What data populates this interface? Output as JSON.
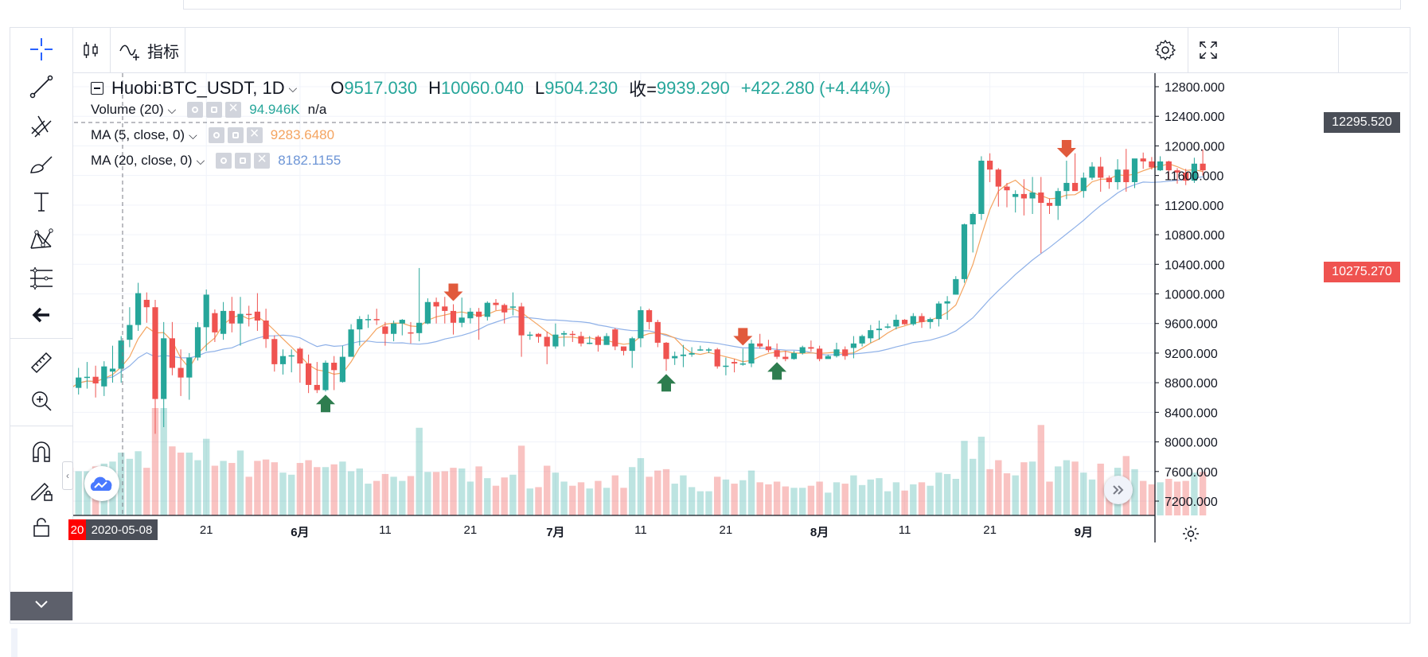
{
  "top_toolbar": {
    "indicators_label": "指标"
  },
  "legend": {
    "symbol": "Huobi:BTC_USDT, 1D",
    "open_key": "O",
    "open": "9517.030",
    "high_key": "H",
    "high": "10060.040",
    "low_key": "L",
    "low": "9504.230",
    "close_key": "收=",
    "close": "9939.290",
    "change": "+422.280 (+4.44%)",
    "volume_label": "Volume (20)",
    "volume_value": "94.946K",
    "volume_extra": "n/a",
    "ma5_label": "MA (5, close, 0)",
    "ma5_value": "9283.6480",
    "ma20_label": "MA (20, close, 0)",
    "ma20_value": "8182.1155"
  },
  "price_labels": {
    "crosshair_price": "12295.520",
    "last_price": "10275.270"
  },
  "date_labels": {
    "cursor_date": "2020-05-08",
    "cursor_prefix": "20"
  },
  "colors": {
    "up": "#26a69a",
    "down": "#ef5350",
    "ma5": "#f4a460",
    "ma20": "#8fb1e8",
    "buy_arrow": "#2e7d4f",
    "sell_arrow": "#e15a3c",
    "crosshair_label": "#4a4e57",
    "last_price_label": "#ef5350"
  },
  "icons": [
    "crosshair-icon",
    "trend-line-icon",
    "pitchfork-icon",
    "brush-icon",
    "text-icon",
    "pattern-icon",
    "fib-icon",
    "back-arrow-icon",
    "ruler-icon",
    "zoom-in-icon",
    "magnet-icon",
    "lock-draw-icon",
    "lock-icon",
    "candles-icon",
    "indicator-icon",
    "settings-icon",
    "fullscreen-icon",
    "logo-icon",
    "scroll-right-icon",
    "gear-icon"
  ],
  "chart_data": {
    "type": "candlestick",
    "y_axis": {
      "ticks": [
        "12800.000",
        "12400.000",
        "12000.000",
        "11600.000",
        "11200.000",
        "10800.000",
        "10400.000",
        "10000.000",
        "9600.000",
        "9200.000",
        "8800.000",
        "8400.000",
        "8000.000",
        "7600.000",
        "7200.000"
      ],
      "range": [
        7000,
        13000
      ]
    },
    "x_axis": {
      "ticks": [
        {
          "label": "21",
          "bold": false,
          "index": 16
        },
        {
          "label": "6月",
          "bold": true,
          "index": 27
        },
        {
          "label": "11",
          "bold": false,
          "index": 37
        },
        {
          "label": "21",
          "bold": false,
          "index": 47
        },
        {
          "label": "7月",
          "bold": true,
          "index": 57
        },
        {
          "label": "11",
          "bold": false,
          "index": 67
        },
        {
          "label": "21",
          "bold": false,
          "index": 77
        },
        {
          "label": "8月",
          "bold": true,
          "index": 88
        },
        {
          "label": "11",
          "bold": false,
          "index": 98
        },
        {
          "label": "21",
          "bold": false,
          "index": 108
        },
        {
          "label": "9月",
          "bold": true,
          "index": 119
        }
      ]
    },
    "candles": [
      [
        8990,
        8720,
        9070,
        8660
      ],
      [
        8730,
        8870,
        9000,
        8640
      ],
      [
        8870,
        8880,
        9080,
        8720
      ],
      [
        8880,
        8790,
        9030,
        8600
      ],
      [
        8750,
        9020,
        9090,
        8620
      ],
      [
        8950,
        8990,
        9300,
        8800
      ],
      [
        8990,
        9370,
        9430,
        8800
      ],
      [
        9380,
        9580,
        9820,
        9280
      ],
      [
        9580,
        10010,
        10150,
        9500
      ],
      [
        9920,
        9820,
        10020,
        9610
      ],
      [
        9820,
        8580,
        9920,
        8110
      ],
      [
        8580,
        9400,
        9620,
        8200
      ],
      [
        9400,
        9000,
        9620,
        8900
      ],
      [
        9000,
        8870,
        9250,
        8620
      ],
      [
        8870,
        9140,
        9200,
        8570
      ],
      [
        9140,
        9550,
        9620,
        9100
      ],
      [
        9550,
        9990,
        10060,
        9230
      ],
      [
        9740,
        9480,
        9790,
        9350
      ],
      [
        9460,
        9770,
        9890,
        9380
      ],
      [
        9770,
        9600,
        9960,
        9480
      ],
      [
        9600,
        9730,
        9960,
        9300
      ],
      [
        9730,
        9720,
        9840,
        9560
      ],
      [
        9760,
        9640,
        10010,
        9500
      ],
      [
        9640,
        9390,
        9800,
        9270
      ],
      [
        9390,
        9050,
        9440,
        8950
      ],
      [
        9050,
        9160,
        9250,
        8910
      ],
      [
        9160,
        9170,
        9250,
        8940
      ],
      [
        9260,
        9060,
        9280,
        8800
      ],
      [
        9060,
        8770,
        9180,
        8660
      ],
      [
        8770,
        8700,
        9080,
        8660
      ],
      [
        8700,
        9070,
        9100,
        8680
      ],
      [
        9070,
        8970,
        9160,
        8700
      ],
      [
        8810,
        9150,
        9300,
        8800
      ],
      [
        9150,
        9520,
        9590,
        9230
      ],
      [
        9520,
        9660,
        9700,
        9300
      ],
      [
        9660,
        9660,
        9720,
        9540
      ],
      [
        9660,
        9650,
        9800,
        9580
      ],
      [
        9560,
        9460,
        9620,
        9300
      ],
      [
        9460,
        9600,
        9640,
        9360
      ],
      [
        9600,
        9650,
        9660,
        9440
      ],
      [
        9480,
        9470,
        9620,
        9330
      ],
      [
        9470,
        9610,
        10350,
        9360
      ],
      [
        9600,
        9890,
        9940,
        9590
      ],
      [
        9890,
        9830,
        9950,
        9600
      ],
      [
        9830,
        9770,
        9960,
        9600
      ],
      [
        9770,
        9610,
        9860,
        9450
      ],
      [
        9610,
        9680,
        9950,
        9550
      ],
      [
        9670,
        9760,
        9810,
        9600
      ],
      [
        9760,
        9690,
        9810,
        9380
      ],
      [
        9690,
        9880,
        9900,
        9640
      ],
      [
        9880,
        9850,
        9930,
        9780
      ],
      [
        9850,
        9750,
        9870,
        9600
      ],
      [
        9820,
        9830,
        10020,
        9710
      ],
      [
        9830,
        9440,
        9880,
        9150
      ],
      [
        9440,
        9450,
        9490,
        9380
      ],
      [
        9460,
        9420,
        9470,
        9340
      ],
      [
        9420,
        9290,
        9490,
        9050
      ],
      [
        9290,
        9450,
        9600,
        9260
      ],
      [
        9450,
        9470,
        9500,
        9290
      ],
      [
        9460,
        9450,
        9500,
        9350
      ],
      [
        9430,
        9330,
        9490,
        9290
      ],
      [
        9330,
        9340,
        9430,
        9320
      ],
      [
        9420,
        9310,
        9440,
        9220
      ],
      [
        9310,
        9430,
        9470,
        9350
      ],
      [
        9520,
        9290,
        9540,
        9240
      ],
      [
        9290,
        9230,
        9290,
        9170
      ],
      [
        9230,
        9400,
        9420,
        9000
      ],
      [
        9400,
        9780,
        9830,
        9280
      ],
      [
        9780,
        9620,
        9800,
        9520
      ],
      [
        9620,
        9340,
        9650,
        9280
      ],
      [
        9340,
        9120,
        9350,
        8960
      ],
      [
        9130,
        9160,
        9220,
        9040
      ],
      [
        9160,
        9180,
        9310,
        9010
      ],
      [
        9180,
        9200,
        9280,
        9150
      ],
      [
        9240,
        9250,
        9300,
        9230
      ],
      [
        9250,
        9250,
        9270,
        9200
      ],
      [
        9250,
        9020,
        9270,
        8990
      ],
      [
        9020,
        9030,
        9140,
        8900
      ],
      [
        9080,
        9060,
        9120,
        8940
      ],
      [
        9060,
        9060,
        9260,
        9030
      ],
      [
        9060,
        9330,
        9380,
        9010
      ],
      [
        9330,
        9290,
        9460,
        9260
      ],
      [
        9290,
        9240,
        9380,
        9210
      ],
      [
        9240,
        9150,
        9330,
        9120
      ],
      [
        9150,
        9120,
        9230,
        9090
      ],
      [
        9120,
        9200,
        9230,
        9110
      ],
      [
        9200,
        9280,
        9300,
        9180
      ],
      [
        9280,
        9260,
        9370,
        9220
      ],
      [
        9260,
        9120,
        9300,
        9090
      ],
      [
        9120,
        9160,
        9180,
        9130
      ],
      [
        9160,
        9250,
        9340,
        9140
      ],
      [
        9250,
        9160,
        9290,
        9110
      ],
      [
        9270,
        9330,
        9430,
        9130
      ],
      [
        9330,
        9430,
        9450,
        9290
      ],
      [
        9400,
        9510,
        9580,
        9340
      ],
      [
        9510,
        9530,
        9640,
        9380
      ],
      [
        9550,
        9560,
        9600,
        9530
      ],
      [
        9560,
        9650,
        9720,
        9520
      ],
      [
        9650,
        9590,
        9660,
        9580
      ],
      [
        9590,
        9700,
        9740,
        9570
      ],
      [
        9700,
        9620,
        9740,
        9540
      ],
      [
        9620,
        9660,
        9680,
        9530
      ],
      [
        9660,
        9870,
        9900,
        9560
      ],
      [
        9870,
        9900,
        9970,
        9650
      ],
      [
        9990,
        10200,
        10240,
        9990
      ],
      [
        10200,
        10940,
        10950,
        10150
      ],
      [
        10940,
        11080,
        11100,
        10560
      ],
      [
        11080,
        11800,
        11860,
        11000
      ],
      [
        11800,
        11680,
        11900,
        11510
      ],
      [
        11680,
        11450,
        11700,
        11180
      ],
      [
        11450,
        11400,
        11500,
        11170
      ],
      [
        11310,
        11350,
        11400,
        11100
      ],
      [
        11350,
        11290,
        11550,
        11060
      ],
      [
        11290,
        11370,
        11580,
        11080
      ],
      [
        11370,
        11230,
        11580,
        10550
      ],
      [
        11230,
        11190,
        11290,
        11080
      ],
      [
        11190,
        11390,
        11430,
        11000
      ],
      [
        11390,
        11500,
        11800,
        11280
      ],
      [
        11500,
        11390,
        11900,
        11400
      ],
      [
        11390,
        11570,
        11640,
        11300
      ],
      [
        11570,
        11720,
        11780,
        11540
      ],
      [
        11720,
        11570,
        11850,
        11380
      ],
      [
        11570,
        11510,
        11600,
        11420
      ],
      [
        11510,
        11680,
        11820,
        11410
      ],
      [
        11680,
        11510,
        11960,
        11380
      ],
      [
        11510,
        11830,
        11820,
        11430
      ],
      [
        11830,
        11790,
        11910,
        11690
      ],
      [
        11790,
        11710,
        11850,
        11680
      ],
      [
        11670,
        11790,
        11860,
        11660
      ],
      [
        11790,
        11670,
        11800,
        11550
      ],
      [
        11670,
        11640,
        11700,
        11490
      ],
      [
        11640,
        11530,
        11690,
        11470
      ],
      [
        11530,
        11760,
        11840,
        11500
      ],
      [
        11760,
        11670,
        11950,
        11600
      ]
    ],
    "volume_relative_max": 8450
  }
}
